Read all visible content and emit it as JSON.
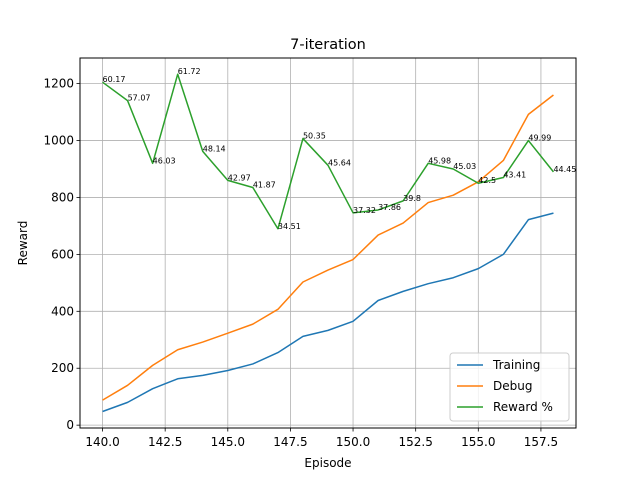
{
  "chart_data": {
    "type": "line",
    "title": "7-iteration",
    "xlabel": "Episode",
    "ylabel": "Reward",
    "xlim": [
      139.1,
      158.9
    ],
    "ylim": [
      -10,
      1290
    ],
    "xticks": [
      140.0,
      142.5,
      145.0,
      147.5,
      150.0,
      152.5,
      155.0,
      157.5
    ],
    "xtick_labels": [
      "140.0",
      "142.5",
      "145.0",
      "147.5",
      "150.0",
      "152.5",
      "155.0",
      "157.5"
    ],
    "yticks": [
      0,
      200,
      400,
      600,
      800,
      1000,
      1200
    ],
    "ytick_labels": [
      "0",
      "200",
      "400",
      "600",
      "800",
      "1000",
      "1200"
    ],
    "grid": true,
    "legend_position": "lower-right",
    "x": [
      140,
      141,
      142,
      143,
      144,
      145,
      146,
      147,
      148,
      149,
      150,
      151,
      152,
      153,
      154,
      155,
      156,
      157,
      158
    ],
    "series": [
      {
        "name": "Training",
        "color": "#1f77b4",
        "values": [
          48,
          80,
          128,
          163,
          175,
          192,
          215,
          255,
          312,
          333,
          365,
          438,
          470,
          497,
          518,
          550,
          600,
          722,
          745
        ]
      },
      {
        "name": "Debug",
        "color": "#ff7f0e",
        "values": [
          88,
          140,
          210,
          265,
          292,
          323,
          355,
          407,
          503,
          545,
          582,
          668,
          710,
          782,
          808,
          855,
          930,
          1092,
          1160
        ]
      },
      {
        "name": "Reward %",
        "color": "#2ca02c",
        "values": [
          1205,
          1140,
          920,
          1233,
          962,
          860,
          835,
          690,
          1007,
          913,
          746,
          756,
          788,
          920,
          900,
          850,
          870,
          1000,
          890
        ],
        "annotations": [
          "60.17",
          "57.07",
          "46.03",
          "61.72",
          "48.14",
          "42.97",
          "41.87",
          "34.51",
          "50.35",
          "45.64",
          "37.32",
          "37.86",
          "39.8",
          "45.98",
          "45.03",
          "42.5",
          "43.41",
          "49.99",
          "44.45"
        ]
      }
    ]
  }
}
